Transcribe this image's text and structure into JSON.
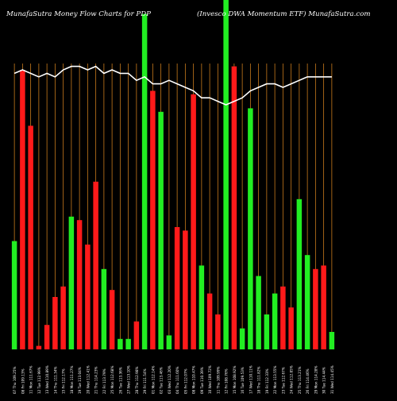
{
  "header": {
    "left": "MunafaSutra  Money Flow  Charts for PDP",
    "right": "(Invesco  DWA Momentum ETF) MunafaSutra.com"
  },
  "colors": {
    "background": "#000000",
    "grid": "#c87a1c",
    "up": "#22ee22",
    "down": "#ff1a1a",
    "line": "#ffffff",
    "text": "#ffffff"
  },
  "chart_data": {
    "type": "bar",
    "title": "MunafaSutra  Money Flow  Charts for PDP",
    "subtitle": "(Invesco  DWA Momentum ETF) MunafaSutra.com",
    "ylim": [
      0,
      100
    ],
    "grid": true,
    "categories": [
      "07 Thu 109.25%",
      "08 Fri 109.13%",
      "11 Mon 111.67%",
      "12 Tue 112.99%",
      "13 Wed 110.89%",
      "14 Thu 111.34%",
      "15 Fri 112.17%",
      "18 Mon 111.27%",
      "19 Tue 113.04%",
      "20 Wed 112.41%",
      "21 Thu 114.23%",
      "22 Fri 113.79%",
      "25 Mon 112.68%",
      "26 Tue 113.36%",
      "27 Wed 113.10%",
      "28 Thu 112.98%",
      "29 Fri 111.54%",
      "01 Mon 112.14%",
      "02 Tue 113.46%",
      "03 Wed 112.20%",
      "04 Thu 111.60%",
      "05 Fri 112.07%",
      "08 Mon 110.47%",
      "09 Tue 110.39%",
      "10 Wed 109.72%",
      "11 Thu 109.99%",
      "12 Fri 108.76%",
      "15 Mon 108.92%",
      "16 Tue 109.53%",
      "17 Wed 110.11%",
      "18 Thu 111.82%",
      "19 Fri 112.33%",
      "22 Mon 113.55%",
      "23 Tue 112.67%",
      "24 Wed 112.85%",
      "25 Thu 113.21%",
      "26 Fri 114.46%",
      "29 Mon 114.28%",
      "30 Tue 114.44%",
      "31 Wed 114.45%"
    ],
    "series": [
      {
        "values": [
          31,
          80,
          64,
          1,
          7,
          15,
          18,
          38,
          37,
          30,
          48,
          23,
          17,
          3,
          3,
          8,
          96,
          74,
          68,
          4,
          35,
          34,
          73,
          24,
          16,
          10,
          100,
          81,
          6,
          69,
          21,
          10,
          16,
          18,
          12,
          43,
          27,
          23,
          24,
          5
        ]
      },
      {
        "values": [
          79,
          80,
          79,
          78,
          79,
          78,
          80,
          81,
          81,
          80,
          81,
          79,
          80,
          79,
          79,
          77,
          78,
          76,
          76,
          77,
          76,
          75,
          74,
          72,
          72,
          71,
          70,
          71,
          72,
          74,
          75,
          76,
          76,
          75,
          76,
          77,
          78,
          78,
          78,
          78
        ]
      }
    ],
    "bar_colors": [
      "green",
      "red",
      "red",
      "red",
      "red",
      "red",
      "red",
      "green",
      "red",
      "red",
      "red",
      "green",
      "red",
      "green",
      "green",
      "red",
      "green",
      "red",
      "green",
      "green",
      "red",
      "red",
      "red",
      "green",
      "red",
      "red",
      "green",
      "red",
      "green",
      "green",
      "green",
      "green",
      "green",
      "red",
      "red",
      "green",
      "green",
      "red",
      "red",
      "green"
    ]
  }
}
